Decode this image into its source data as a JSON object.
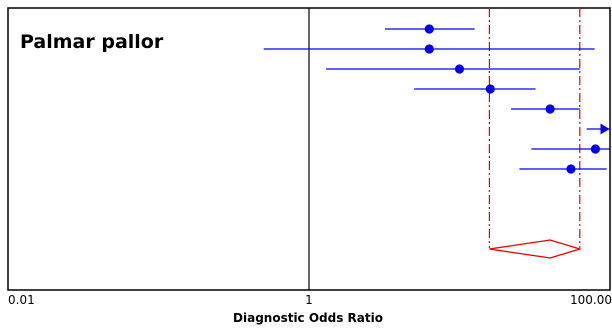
{
  "chart_data": {
    "type": "forest",
    "title": "Palmar pallor",
    "xlabel": "Diagnostic Odds Ratio",
    "ylabel": "",
    "x_scale": "log10",
    "xlim": [
      0.01,
      100.0
    ],
    "x_ticks": [
      {
        "value": 0.01,
        "label": "0.01"
      },
      {
        "value": 1,
        "label": "1"
      },
      {
        "value": 100.0,
        "label": "100.00"
      }
    ],
    "reference_line": 1,
    "studies": [
      {
        "point": 6.3,
        "lower": 3.2,
        "upper": 12.6
      },
      {
        "point": 6.3,
        "lower": 0.5,
        "upper": 79
      },
      {
        "point": 10,
        "lower": 1.3,
        "upper": 63
      },
      {
        "point": 16,
        "lower": 5.0,
        "upper": 32
      },
      {
        "point": 40,
        "lower": 22,
        "upper": 63
      },
      {
        "point": 130,
        "lower": 70,
        "upper": 200,
        "arrow": "right"
      },
      {
        "point": 80,
        "lower": 30,
        "upper": 125
      },
      {
        "point": 55,
        "lower": 25,
        "upper": 95
      }
    ],
    "pooled": {
      "point": 40,
      "lower": 15.8,
      "upper": 63
    },
    "colors": {
      "study": "#0000ee",
      "pooled": "#ee0000",
      "frame": "#000000"
    }
  }
}
